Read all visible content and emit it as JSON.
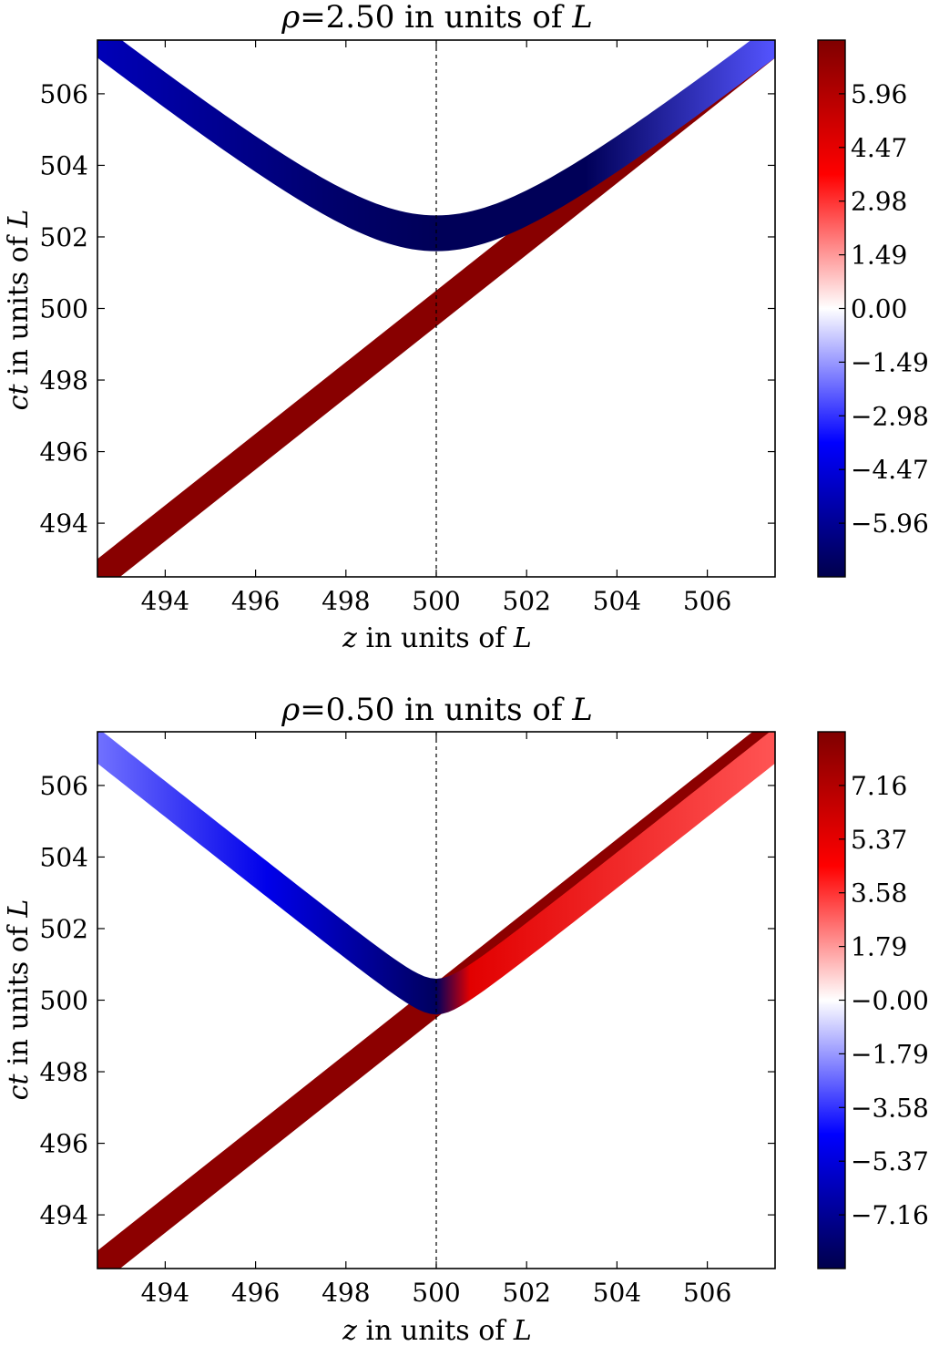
{
  "chart_data": [
    {
      "type": "heatmap",
      "title_prefix": "ρ",
      "title_value": "=2.50 in units of ",
      "title_unit": "L",
      "xlabel_var": "z",
      "xlabel_rest": " in units of ",
      "xlabel_unit": "L",
      "ylabel_var": "ct",
      "ylabel_rest": " in units of ",
      "ylabel_unit": "L",
      "xlim": [
        492.5,
        507.5
      ],
      "ylim": [
        492.5,
        507.5
      ],
      "xticks": [
        "494",
        "496",
        "498",
        "500",
        "502",
        "504",
        "506"
      ],
      "yticks": [
        "494",
        "496",
        "498",
        "500",
        "502",
        "504",
        "506"
      ],
      "reference_line_x": 500,
      "rho": 2.5,
      "colorbar": {
        "range": [
          -7.45,
          7.45
        ],
        "ticks": [
          -5.96,
          -4.47,
          -2.98,
          -1.49,
          0.0,
          1.49,
          2.98,
          4.47,
          5.96
        ],
        "tick_labels": [
          "−5.96",
          "−4.47",
          "−2.98",
          "−1.49",
          "0.00",
          "1.49",
          "2.98",
          "4.47",
          "5.96"
        ]
      },
      "bands": [
        {
          "name": "",
          "kind": "line",
          "description_x": [
            492.5,
            507.5
          ],
          "description_y": [
            492.5,
            507.5
          ],
          "value": 7.2
        },
        {
          "name": "",
          "kind": "hyperbola",
          "rho": 2.5,
          "center_z": 500,
          "t0": 500,
          "values_left_to_right": [
            -5.2,
            -6.8,
            -7.2,
            -7.2,
            -2.5
          ]
        }
      ]
    },
    {
      "type": "heatmap",
      "title_prefix": "ρ",
      "title_value": "=0.50 in units of ",
      "title_unit": "L",
      "xlabel_var": "z",
      "xlabel_rest": " in units of ",
      "xlabel_unit": "L",
      "ylabel_var": "ct",
      "ylabel_rest": " in units of ",
      "ylabel_unit": "L",
      "xlim": [
        492.5,
        507.5
      ],
      "ylim": [
        492.5,
        507.5
      ],
      "xticks": [
        "494",
        "496",
        "498",
        "500",
        "502",
        "504",
        "506"
      ],
      "yticks": [
        "494",
        "496",
        "498",
        "500",
        "502",
        "504",
        "506"
      ],
      "reference_line_x": 500,
      "rho": 0.5,
      "colorbar": {
        "range": [
          -8.95,
          8.95
        ],
        "ticks": [
          -7.16,
          -5.37,
          -3.58,
          -1.79,
          -0.0,
          1.79,
          3.58,
          5.37,
          7.16
        ],
        "tick_labels": [
          "−7.16",
          "−5.37",
          "−3.58",
          "−1.79",
          "−0.00",
          "1.79",
          "3.58",
          "5.37",
          "7.16"
        ]
      },
      "bands": [
        {
          "name": "",
          "kind": "line",
          "value": 8.5
        },
        {
          "name": "",
          "kind": "hyperbola",
          "rho": 0.5,
          "center_z": 500,
          "t0": 500,
          "values_left_to_right": [
            -2.5,
            -5.0,
            -8.5,
            5.5,
            3.0
          ]
        }
      ]
    }
  ]
}
